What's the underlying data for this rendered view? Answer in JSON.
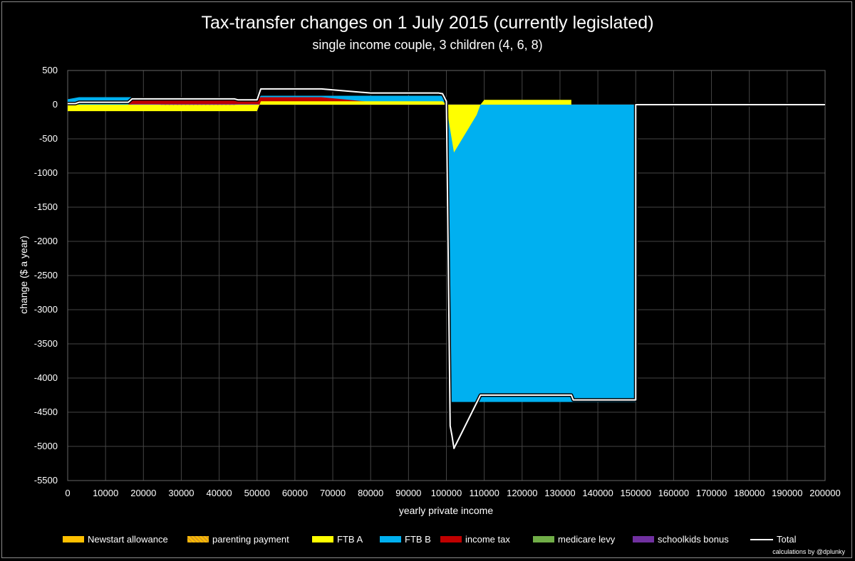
{
  "chart_data": {
    "type": "area",
    "title": "Tax-transfer changes on 1 July 2015 (currently legislated)",
    "subtitle": "single income couple, 3 children (4, 6, 8)",
    "xlabel": "yearly private income",
    "ylabel": "change ($ a year)",
    "xlim": [
      0,
      200000
    ],
    "ylim": [
      -5500,
      500
    ],
    "x_ticks": [
      "0",
      "10000",
      "20000",
      "30000",
      "40000",
      "50000",
      "60000",
      "70000",
      "80000",
      "90000",
      "100000",
      "110000",
      "120000",
      "130000",
      "140000",
      "150000",
      "160000",
      "170000",
      "180000",
      "190000",
      "200000"
    ],
    "y_ticks": [
      "500",
      "0",
      "-500",
      "-1000",
      "-1500",
      "-2000",
      "-2500",
      "-3000",
      "-3500",
      "-4000",
      "-4500",
      "-5000",
      "-5500"
    ],
    "grid": true,
    "legend_position": "bottom",
    "series": [
      {
        "name": "Newstart allowance",
        "color": "#ffc000",
        "x": [
          0,
          50000
        ],
        "values": [
          0,
          0
        ]
      },
      {
        "name": "parenting payment",
        "color": "#ffc000",
        "pattern": "hatch",
        "x": [
          24000,
          25000,
          44000,
          45000
        ],
        "values": [
          0,
          -8,
          -8,
          0
        ]
      },
      {
        "name": "FTB A",
        "color": "#ffff00",
        "x": [
          0,
          1000,
          49999,
          50000,
          51000,
          98000,
          99000,
          100000,
          100001,
          102000,
          108000,
          109000,
          110000,
          133000,
          133001
        ],
        "values": [
          -95,
          -95,
          -95,
          -95,
          50,
          50,
          50,
          0,
          -30,
          -700,
          -150,
          0,
          70,
          70,
          0
        ]
      },
      {
        "name": "FTB B",
        "color": "#00b0f0",
        "x": [
          0,
          3000,
          16000,
          17000,
          44000,
          45000,
          50000,
          51000,
          98000,
          99000,
          100000,
          101000,
          109000,
          133000,
          150000,
          150001
        ],
        "values": [
          80,
          110,
          110,
          110,
          110,
          60,
          60,
          130,
          130,
          130,
          -80,
          -4350,
          -4350,
          -4350,
          -4350,
          0
        ]
      },
      {
        "name": "income tax",
        "color": "#c00000",
        "x": [
          0,
          16000,
          17000,
          35000,
          44000,
          45000,
          50000,
          51000,
          67000,
          80000,
          98000,
          99000
        ],
        "values": [
          0,
          0,
          70,
          70,
          70,
          90,
          90,
          110,
          110,
          40,
          0,
          0
        ]
      },
      {
        "name": "medicare levy",
        "color": "#70ad47",
        "x": [
          0,
          200000
        ],
        "values": [
          0,
          0
        ]
      },
      {
        "name": "schoolkids bonus",
        "color": "#7030a0",
        "x": [
          0,
          16000,
          17000,
          50000,
          51000
        ],
        "values": [
          0,
          0,
          10,
          10,
          0
        ]
      },
      {
        "name": "Total",
        "color": "#ffffff",
        "line": true,
        "x": [
          0,
          2000,
          3000,
          16000,
          17000,
          44000,
          45000,
          50000,
          51000,
          67000,
          80000,
          98000,
          99000,
          100000,
          101000,
          101500,
          102000,
          109000,
          110000,
          133000,
          133500,
          150000,
          150001,
          200000
        ],
        "values": [
          15,
          15,
          35,
          35,
          85,
          85,
          70,
          70,
          230,
          230,
          170,
          170,
          160,
          50,
          -4700,
          -4850,
          -5030,
          -4250,
          -4250,
          -4250,
          -4320,
          -4320,
          0,
          0
        ]
      }
    ]
  },
  "credit": "calculations by @dplunky"
}
